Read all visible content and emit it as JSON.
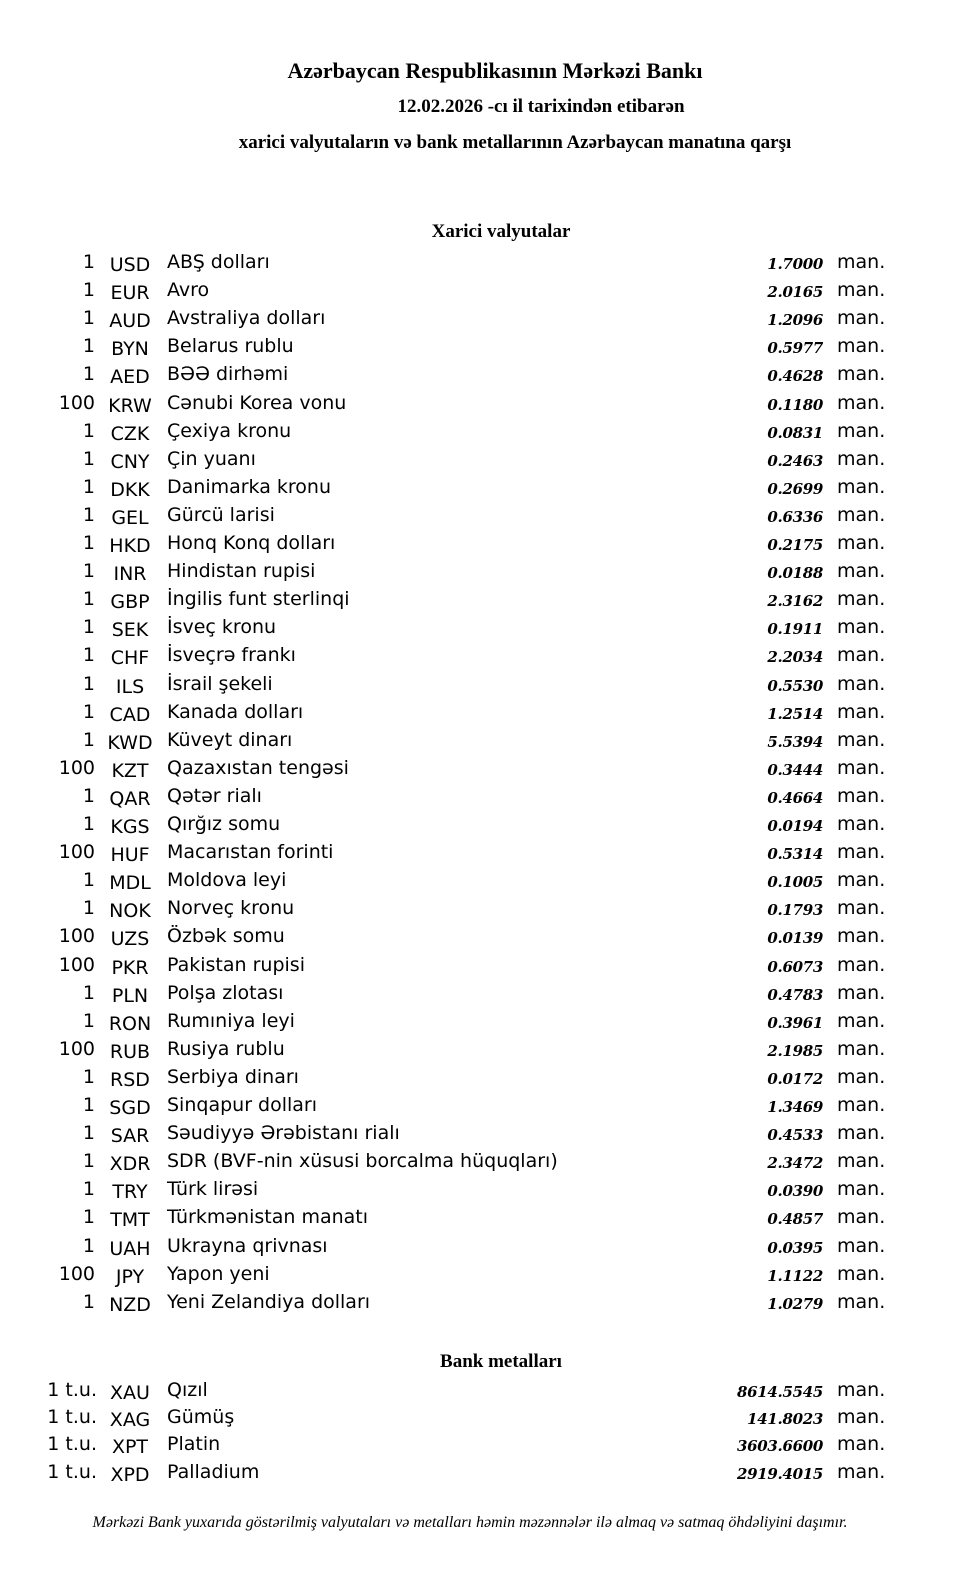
{
  "header": {
    "title": "Azərbaycan Respublikasının Mərkəzi Bankı",
    "date_line": "12.02.2026 -cı il tarixindən etibarən",
    "subtitle": "xarici valyutaların və bank metallarının Azərbaycan manatına qarşı"
  },
  "currencies": {
    "heading": "Xarici valyutalar",
    "unit": "man.",
    "rows": [
      {
        "amount": "1",
        "code": "USD",
        "name": "ABŞ dolları",
        "rate": "1.7000"
      },
      {
        "amount": "1",
        "code": "EUR",
        "name": "Avro",
        "rate": "2.0165"
      },
      {
        "amount": "1",
        "code": "AUD",
        "name": "Avstraliya dolları",
        "rate": "1.2096"
      },
      {
        "amount": "1",
        "code": "BYN",
        "name": "Belarus rublu",
        "rate": "0.5977"
      },
      {
        "amount": "1",
        "code": "AED",
        "name": "BƏƏ dirhəmi",
        "rate": "0.4628"
      },
      {
        "amount": "100",
        "code": "KRW",
        "name": "Cənubi Korea vonu",
        "rate": "0.1180"
      },
      {
        "amount": "1",
        "code": "CZK",
        "name": "Çexiya kronu",
        "rate": "0.0831"
      },
      {
        "amount": "1",
        "code": "CNY",
        "name": "Çin yuanı",
        "rate": "0.2463"
      },
      {
        "amount": "1",
        "code": "DKK",
        "name": "Danimarka kronu",
        "rate": "0.2699"
      },
      {
        "amount": "1",
        "code": "GEL",
        "name": "Gürcü larisi",
        "rate": "0.6336"
      },
      {
        "amount": "1",
        "code": "HKD",
        "name": "Honq Konq dolları",
        "rate": "0.2175"
      },
      {
        "amount": "1",
        "code": "INR",
        "name": "Hindistan rupisi",
        "rate": "0.0188"
      },
      {
        "amount": "1",
        "code": "GBP",
        "name": "İngilis funt sterlinqi",
        "rate": "2.3162"
      },
      {
        "amount": "1",
        "code": "SEK",
        "name": "İsveç kronu",
        "rate": "0.1911"
      },
      {
        "amount": "1",
        "code": "CHF",
        "name": "İsveçrə frankı",
        "rate": "2.2034"
      },
      {
        "amount": "1",
        "code": "ILS",
        "name": "İsrail şekeli",
        "rate": "0.5530"
      },
      {
        "amount": "1",
        "code": "CAD",
        "name": "Kanada dolları",
        "rate": "1.2514"
      },
      {
        "amount": "1",
        "code": "KWD",
        "name": "Küveyt dinarı",
        "rate": "5.5394"
      },
      {
        "amount": "100",
        "code": "KZT",
        "name": "Qazaxıstan tengəsi",
        "rate": "0.3444"
      },
      {
        "amount": "1",
        "code": "QAR",
        "name": "Qətər rialı",
        "rate": "0.4664"
      },
      {
        "amount": "1",
        "code": "KGS",
        "name": "Qırğız somu",
        "rate": "0.0194"
      },
      {
        "amount": "100",
        "code": "HUF",
        "name": "Macarıstan forinti",
        "rate": "0.5314"
      },
      {
        "amount": "1",
        "code": "MDL",
        "name": "Moldova leyi",
        "rate": "0.1005"
      },
      {
        "amount": "1",
        "code": "NOK",
        "name": "Norveç kronu",
        "rate": "0.1793"
      },
      {
        "amount": "100",
        "code": "UZS",
        "name": "Özbək somu",
        "rate": "0.0139"
      },
      {
        "amount": "100",
        "code": "PKR",
        "name": "Pakistan rupisi",
        "rate": "0.6073"
      },
      {
        "amount": "1",
        "code": "PLN",
        "name": "Polşa zlotası",
        "rate": "0.4783"
      },
      {
        "amount": "1",
        "code": "RON",
        "name": "Rumıniya leyi",
        "rate": "0.3961"
      },
      {
        "amount": "100",
        "code": "RUB",
        "name": "Rusiya rublu",
        "rate": "2.1985"
      },
      {
        "amount": "1",
        "code": "RSD",
        "name": "Serbiya dinarı",
        "rate": "0.0172"
      },
      {
        "amount": "1",
        "code": "SGD",
        "name": "Sinqapur dolları",
        "rate": "1.3469"
      },
      {
        "amount": "1",
        "code": "SAR",
        "name": "Səudiyyə Ərəbistanı rialı",
        "rate": "0.4533"
      },
      {
        "amount": "1",
        "code": "XDR",
        "name": "SDR (BVF-nin xüsusi borcalma hüquqları)",
        "rate": "2.3472"
      },
      {
        "amount": "1",
        "code": "TRY",
        "name": "Türk lirəsi",
        "rate": "0.0390"
      },
      {
        "amount": "1",
        "code": "TMT",
        "name": "Türkmənistan manatı",
        "rate": "0.4857"
      },
      {
        "amount": "1",
        "code": "UAH",
        "name": "Ukrayna qrivnası",
        "rate": "0.0395"
      },
      {
        "amount": "100",
        "code": "JPY",
        "name": "Yapon yeni",
        "rate": "1.1122"
      },
      {
        "amount": "1",
        "code": "NZD",
        "name": "Yeni Zelandiya dolları",
        "rate": "1.0279"
      }
    ]
  },
  "metals": {
    "heading": "Bank metalları",
    "unit": "man.",
    "rows": [
      {
        "amount": "1 t.u.",
        "code": "XAU",
        "name": "Qızıl",
        "rate": "8614.5545"
      },
      {
        "amount": "1 t.u.",
        "code": "XAG",
        "name": "Gümüş",
        "rate": "141.8023"
      },
      {
        "amount": "1 t.u.",
        "code": "XPT",
        "name": "Platin",
        "rate": "3603.6600"
      },
      {
        "amount": "1 t.u.",
        "code": "XPD",
        "name": "Palladium",
        "rate": "2919.4015"
      }
    ]
  },
  "footer": {
    "note": "Mərkəzi Bank yuxarıda göstərilmiş valyutaları və metalları həmin məzənnələr ilə almaq və satmaq öhdəliyini daşımır."
  }
}
